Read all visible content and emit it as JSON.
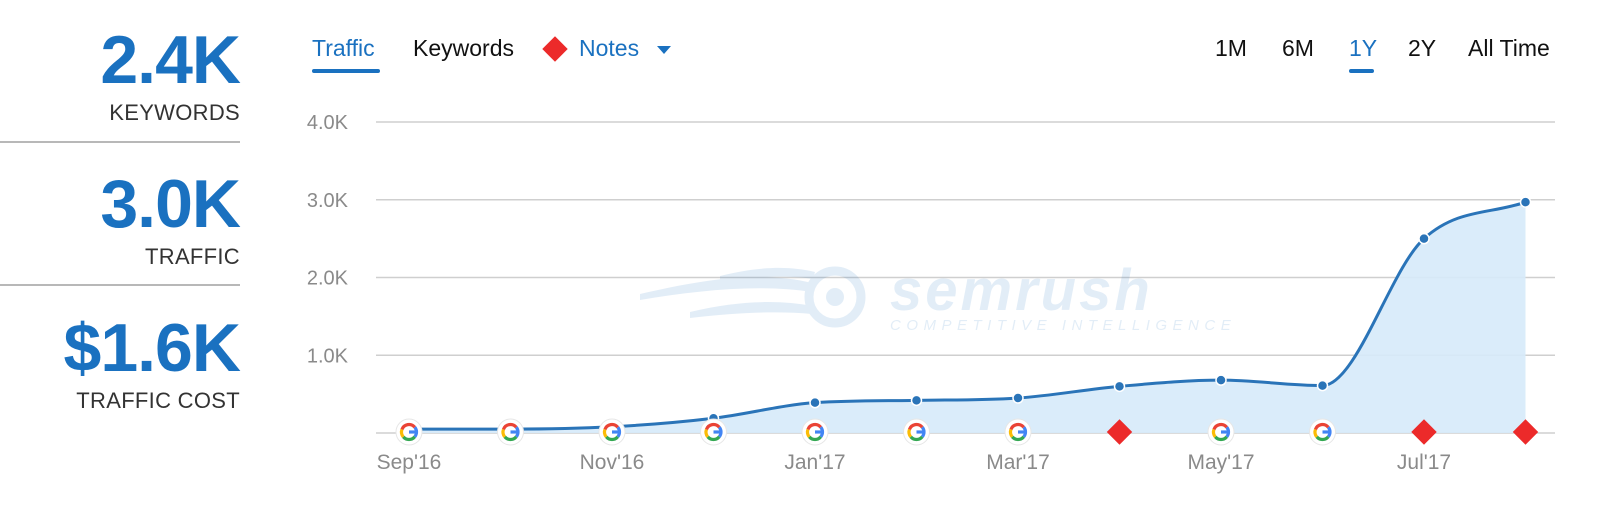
{
  "stats": [
    {
      "value": "2.4K",
      "label": "KEYWORDS"
    },
    {
      "value": "3.0K",
      "label": "TRAFFIC"
    },
    {
      "value": "$1.6K",
      "label": "TRAFFIC COST"
    }
  ],
  "tabs": {
    "traffic": "Traffic",
    "keywords": "Keywords",
    "notes": "Notes"
  },
  "ranges": [
    "1M",
    "6M",
    "1Y",
    "2Y",
    "All Time"
  ],
  "active_range": "1Y",
  "watermark": {
    "brand": "semrush",
    "tagline": "COMPETITIVE INTELLIGENCE"
  },
  "colors": {
    "accent": "#1a71c0",
    "area": "#d6eafa",
    "line": "#2a74b8",
    "note": "#ec2a2a",
    "grid": "#cfcfcf"
  },
  "chart_data": {
    "type": "area",
    "x": [
      "2016-09",
      "2016-10",
      "2016-11",
      "2016-12",
      "2017-01",
      "2017-02",
      "2017-03",
      "2017-04",
      "2017-05",
      "2017-06",
      "2017-07",
      "2017-08"
    ],
    "x_tick_labels": [
      "Sep'16",
      "Nov'16",
      "Jan'17",
      "Mar'17",
      "May'17",
      "Jul'17"
    ],
    "x_tick_months": [
      "2016-09",
      "2016-11",
      "2017-01",
      "2017-03",
      "2017-05",
      "2017-07"
    ],
    "series": [
      {
        "values": [
          50,
          50,
          80,
          190,
          390,
          420,
          450,
          600,
          680,
          610,
          2500,
          2970
        ]
      }
    ],
    "y_tick_values": [
      1000,
      2000,
      3000,
      4000
    ],
    "y_tick_labels": [
      "1.0K",
      "2.0K",
      "3.0K",
      "4.0K"
    ],
    "ylim": [
      0,
      4000
    ],
    "grid": true,
    "markers": [
      "google-icon",
      "google-icon",
      "google-icon",
      "google-icon",
      "google-icon",
      "google-icon",
      "google-icon",
      "note-diamond",
      "google-icon",
      "google-icon",
      "note-diamond",
      "note-diamond"
    ]
  }
}
